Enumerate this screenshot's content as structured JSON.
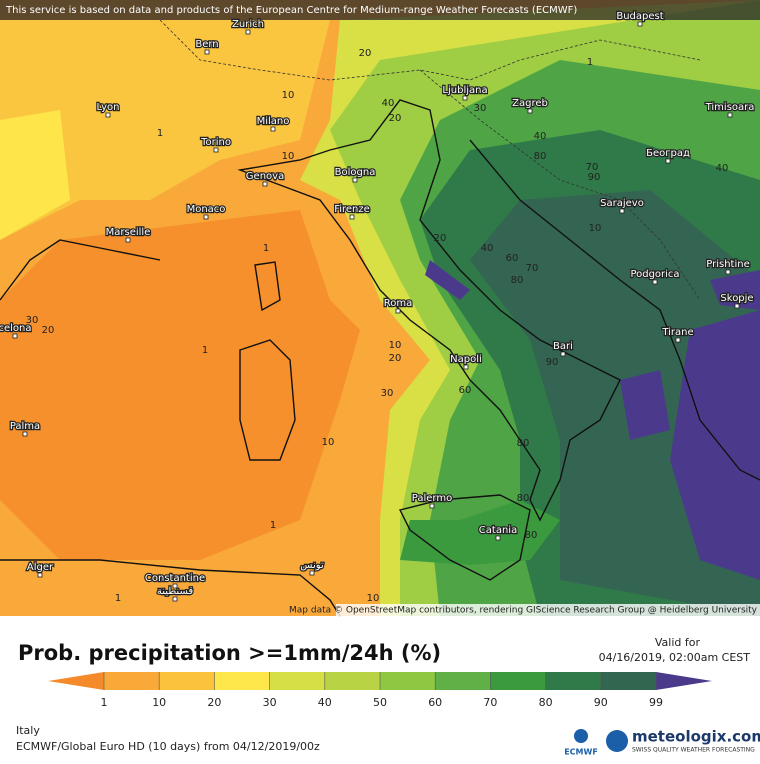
{
  "header": {
    "notice": "This service is based on data and products of the European Centre for Medium-range Weather Forecasts (ECMWF)"
  },
  "map": {
    "cities": [
      "Bern",
      "Zurich",
      "Budapest",
      "Lyon",
      "Milano",
      "Ljubljana",
      "Zagreb",
      "Timisoara",
      "Torino",
      "Genova",
      "Bologna",
      "Београд",
      "Monaco",
      "Firenze",
      "Sarajevo",
      "Marseille",
      "Podgorica",
      "Prishtine",
      "Skopje",
      "Roma",
      "Tirane",
      "celona",
      "Napoli",
      "Bari",
      "Palma",
      "Palermo",
      "Catania",
      "Alger",
      "Constantine",
      "قسنطينة",
      "تونس"
    ],
    "contour_labels": [
      "20",
      "10",
      "40",
      "20",
      "30",
      "40",
      "80",
      "70",
      "90",
      "10",
      "1",
      "20",
      "40",
      "60",
      "70",
      "80",
      "1",
      "30",
      "20",
      "1",
      "10",
      "20",
      "30",
      "60",
      "90",
      "80",
      "10",
      "1",
      "80",
      "80",
      "1",
      "10",
      "10",
      "40",
      "1"
    ],
    "credit": "Map data © OpenStreetMap contributors, rendering GIScience Research Group @ Heidelberg University"
  },
  "legend": {
    "title": "Prob. precipitation >=1mm/24h (%)",
    "ticks": [
      "1",
      "10",
      "20",
      "30",
      "40",
      "50",
      "60",
      "70",
      "80",
      "90",
      "99"
    ],
    "valid_label": "Valid for",
    "valid_time": "04/16/2019, 02:00am CEST"
  },
  "footer": {
    "region": "Italy",
    "model": "ECMWF/Global Euro HD (10 days) from 04/12/2019/00z",
    "ecmwf": "ECMWF",
    "brand": "meteologix.com",
    "tagline": "SWISS QUALITY WEATHER FORECASTING"
  }
}
